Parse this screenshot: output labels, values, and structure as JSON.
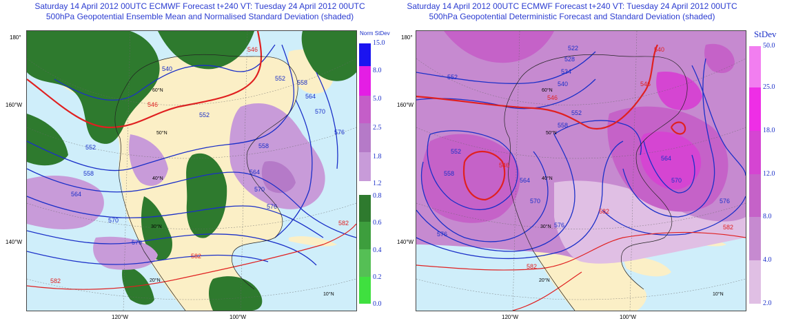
{
  "left_panel": {
    "title_line1": "Saturday 14 April 2012 00UTC ECMWF Forecast t+240  VT: Tuesday 24 April 2012 00UTC",
    "title_line2": "500hPa Geopotential Ensemble Mean and Normalised Standard Deviation (shaded)",
    "axis_labels": {
      "lat_180": "180°",
      "lon_160w": "160°W",
      "lon_140w": "140°W",
      "lon_120w": "120°W",
      "lon_100w": "100°W",
      "lat_60n": "60°N",
      "lat_50n": "50°N",
      "lat_40n": "40°N",
      "lat_30n": "30°N",
      "lat_20n": "20°N",
      "lat_10n": "10°N"
    },
    "contour_labels": [
      "540",
      "546",
      "552",
      "558",
      "564",
      "570",
      "576",
      "582",
      "546",
      "552",
      "558",
      "564",
      "570",
      "576",
      "582",
      "564",
      "552",
      "558",
      "570",
      "576",
      "582"
    ],
    "colorbar_title": "Norm StDev",
    "colorbar_labels": [
      "15.0",
      "8.0",
      "5.0",
      "2.5",
      "1.8",
      "1.2",
      "0.8",
      "0.6",
      "0.4",
      "0.2",
      "0.0"
    ],
    "colorbar_colors": [
      "#1b14f0",
      "#e41ee4",
      "#c45ec8",
      "#b57ac8",
      "#c89bd9",
      "#2e7a2e",
      "#3d9e3d",
      "#55bf55",
      "#3fe03f"
    ]
  },
  "right_panel": {
    "title_line1": "Saturday 14 April 2012 00UTC ECMWF Forecast t+240  VT: Tuesday 24 April 2012 00UTC",
    "title_line2": "500hPa Geopotential Deterministic Forecast and Standard Deviation (shaded)",
    "axis_labels": {
      "lat_180": "180°",
      "lon_160w": "160°W",
      "lon_140w": "140°W",
      "lon_120w": "120°W",
      "lon_100w": "100°W",
      "lat_60n": "60°N",
      "lat_50n": "50°N",
      "lat_40n": "40°N",
      "lat_30n": "30°N",
      "lat_20n": "20°N",
      "lat_10n": "10°N"
    },
    "contour_labels": [
      "552",
      "546",
      "540",
      "534",
      "528",
      "522",
      "546",
      "552",
      "558",
      "564",
      "570",
      "576",
      "540",
      "546",
      "552",
      "558",
      "564",
      "570",
      "576",
      "582",
      "582",
      "582",
      "576"
    ],
    "colorbar_title": "StDev",
    "colorbar_labels": [
      "50.0",
      "25.0",
      "18.0",
      "12.0",
      "8.0",
      "4.0",
      "2.0"
    ],
    "colorbar_colors": [
      "#f27ef0",
      "#ee2ee6",
      "#d545d2",
      "#c562c8",
      "#c68ad0",
      "#e0bfe4"
    ]
  }
}
